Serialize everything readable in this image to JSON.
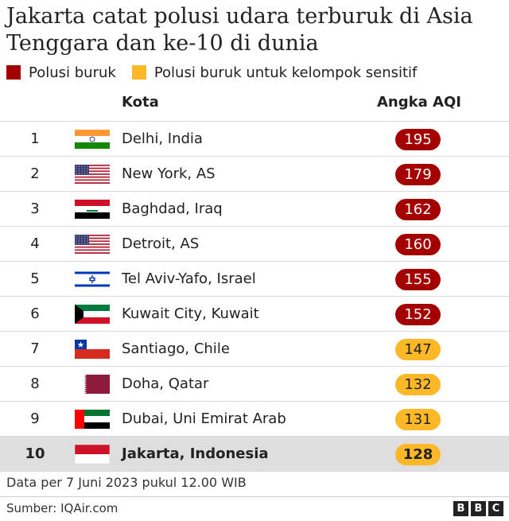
{
  "title": "Jakarta catat polusi udara terburuk di Asia Tenggara dan ke-10 di dunia",
  "legend": [
    {
      "label": "Polusi buruk",
      "color": "#a50000"
    },
    {
      "label": "Polusi buruk untuk kelompok sensitif",
      "color": "#fdb827"
    }
  ],
  "headers": {
    "city": "Kota",
    "aqi": "Angka AQI"
  },
  "chart_data": {
    "type": "table",
    "title": "Jakarta catat polusi udara terburuk di Asia Tenggara dan ke-10 di dunia",
    "columns": [
      "Kota",
      "Angka AQI"
    ],
    "rows": [
      {
        "rank": "1",
        "city": "Delhi, India",
        "flag": "india-flag-icon",
        "aqi": "195",
        "level": "bad"
      },
      {
        "rank": "2",
        "city": "New York, AS",
        "flag": "usa-flag-icon",
        "aqi": "179",
        "level": "bad"
      },
      {
        "rank": "3",
        "city": "Baghdad, Iraq",
        "flag": "iraq-flag-icon",
        "aqi": "162",
        "level": "bad"
      },
      {
        "rank": "4",
        "city": "Detroit, AS",
        "flag": "usa-flag-icon",
        "aqi": "160",
        "level": "bad"
      },
      {
        "rank": "5",
        "city": "Tel Aviv-Yafo, Israel",
        "flag": "israel-flag-icon",
        "aqi": "155",
        "level": "bad"
      },
      {
        "rank": "6",
        "city": "Kuwait City, Kuwait",
        "flag": "kuwait-flag-icon",
        "aqi": "152",
        "level": "bad"
      },
      {
        "rank": "7",
        "city": "Santiago, Chile",
        "flag": "chile-flag-icon",
        "aqi": "147",
        "level": "sensitive"
      },
      {
        "rank": "8",
        "city": "Doha, Qatar",
        "flag": "qatar-flag-icon",
        "aqi": "132",
        "level": "sensitive"
      },
      {
        "rank": "9",
        "city": "Dubai, Uni Emirat Arab",
        "flag": "uae-flag-icon",
        "aqi": "131",
        "level": "sensitive"
      },
      {
        "rank": "10",
        "city": "Jakarta, Indonesia",
        "flag": "indonesia-flag-icon",
        "aqi": "128",
        "level": "sensitive",
        "highlight": true
      }
    ]
  },
  "note": "Data per 7 Juni 2023 pukul 12.00 WIB",
  "source": "Sumber: IQAir.com",
  "logo": [
    "B",
    "B",
    "C"
  ],
  "colors": {
    "bad": "#a50000",
    "sensitive": "#fdb827",
    "bad_text": "#ffffff",
    "sensitive_text": "#222222"
  }
}
